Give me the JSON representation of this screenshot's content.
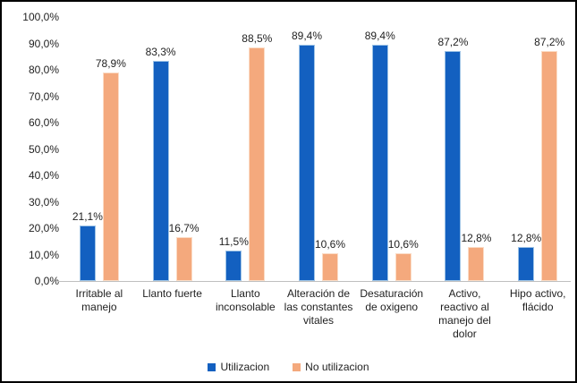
{
  "chart_data": {
    "type": "bar",
    "title": "",
    "xlabel": "",
    "ylabel": "",
    "categories": [
      "Irritable al manejo",
      "Llanto fuerte",
      "Llanto inconsolable",
      "Alteración de las constantes vitales",
      "Desaturación de oxigeno",
      "Activo, reactivo al manejo del dolor",
      "Hipo activo, flácido"
    ],
    "series": [
      {
        "name": "Utilizacion",
        "color": "#1360C0",
        "edge_color": "#9DC3E6",
        "values": [
          21.1,
          83.3,
          11.5,
          89.4,
          89.4,
          87.2,
          12.8
        ],
        "labels": [
          "21,1%",
          "83,3%",
          "11,5%",
          "89,4%",
          "89,4%",
          "87,2%",
          "12,8%"
        ]
      },
      {
        "name": "No utilizacion",
        "color": "#F4A97D",
        "edge_color": "#FBDCC6",
        "values": [
          78.9,
          16.7,
          88.5,
          10.6,
          10.6,
          12.8,
          87.2
        ],
        "labels": [
          "78,9%",
          "16,7%",
          "88,5%",
          "10,6%",
          "10,6%",
          "12,8%",
          "87,2%"
        ]
      }
    ],
    "ylim": [
      0,
      100
    ],
    "ytick_step": 10,
    "yticks": [
      "100,0%",
      "90,0%",
      "80,0%",
      "70,0%",
      "60,0%",
      "50,0%",
      "40,0%",
      "30,0%",
      "20,0%",
      "10,0%",
      "0,0%"
    ],
    "grid": false,
    "legend_position": "bottom",
    "axis_color": "#BFBFBF",
    "text_color": "#1F1F1F"
  }
}
